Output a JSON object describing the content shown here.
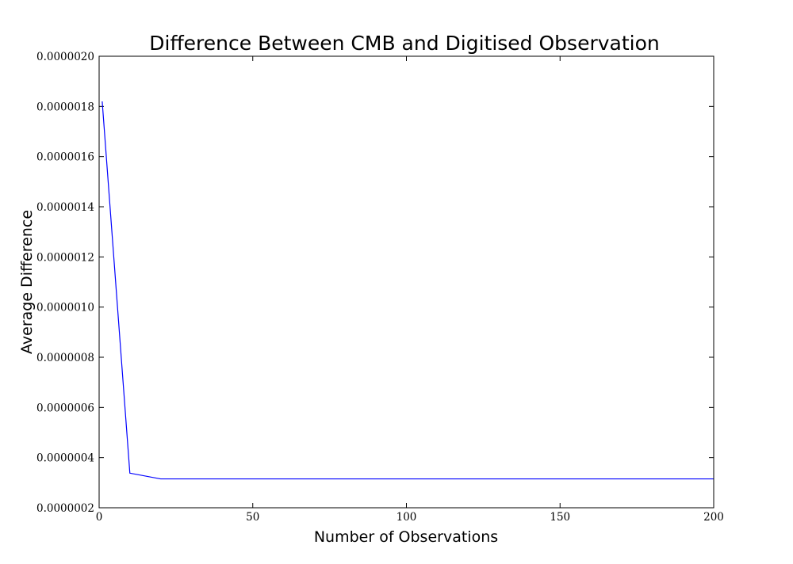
{
  "chart_data": {
    "type": "line",
    "title": "Difference Between CMB and Digitised Observation",
    "xlabel": "Number of Observations",
    "ylabel": "Average Difference",
    "xlim": [
      0,
      200
    ],
    "ylim": [
      2e-07,
      2e-06
    ],
    "x_ticks": [
      0,
      50,
      100,
      150,
      200
    ],
    "x_tick_labels": [
      "0",
      "50",
      "100",
      "150",
      "200"
    ],
    "y_ticks": [
      2e-07,
      4e-07,
      6e-07,
      8e-07,
      1e-06,
      1.2e-06,
      1.4e-06,
      1.6e-06,
      1.8e-06,
      2e-06
    ],
    "y_tick_labels": [
      "0.0000002",
      "0.0000004",
      "0.0000006",
      "0.0000008",
      "0.0000010",
      "0.0000012",
      "0.0000014",
      "0.0000016",
      "0.0000018",
      "0.0000020"
    ],
    "grid": false,
    "series": [
      {
        "color": "#0000ff",
        "x": [
          1,
          10,
          20,
          30,
          40,
          50,
          60,
          70,
          80,
          90,
          100,
          110,
          120,
          130,
          140,
          150,
          160,
          170,
          180,
          190,
          200
        ],
        "y": [
          1.82e-06,
          3.38e-07,
          3.15e-07,
          3.15e-07,
          3.15e-07,
          3.15e-07,
          3.15e-07,
          3.15e-07,
          3.15e-07,
          3.15e-07,
          3.15e-07,
          3.15e-07,
          3.15e-07,
          3.15e-07,
          3.15e-07,
          3.15e-07,
          3.15e-07,
          3.15e-07,
          3.15e-07,
          3.15e-07,
          3.15e-07
        ]
      }
    ]
  }
}
